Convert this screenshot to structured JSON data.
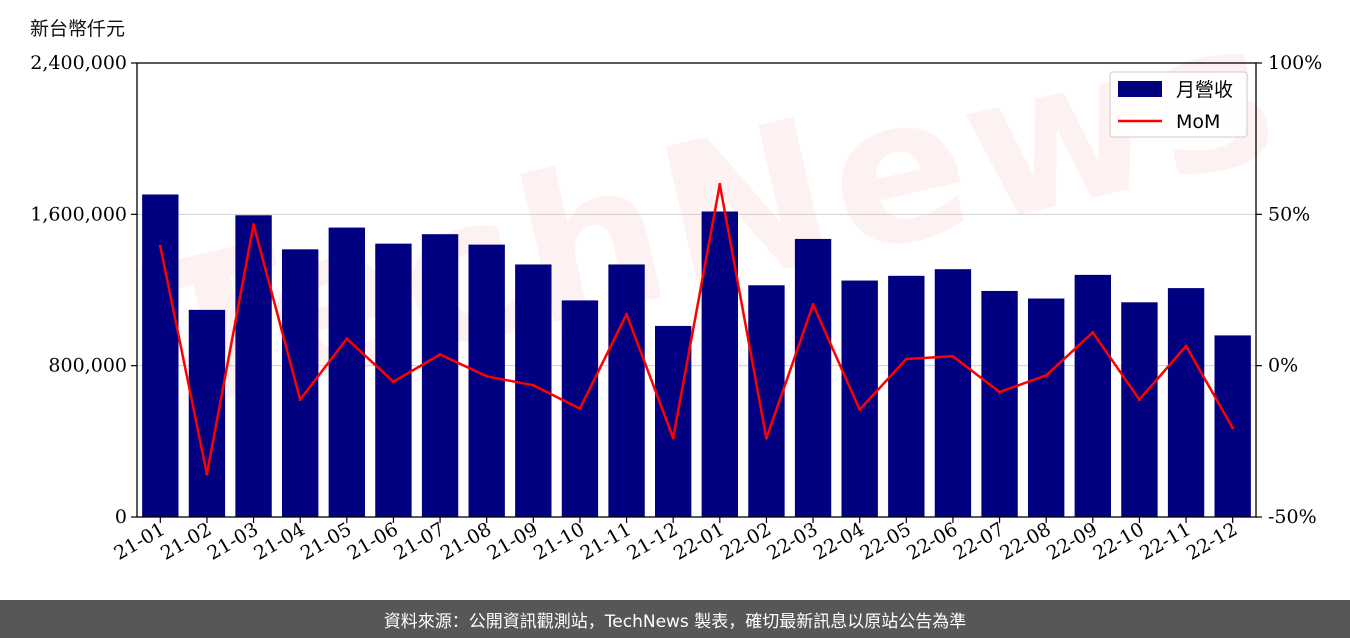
{
  "unit_label": "新台幣仟元",
  "footer_text": "資料來源：公開資訊觀測站，TechNews 製表，確切最新訊息以原站公告為準",
  "watermark_text": "TechNews",
  "chart_data": {
    "type": "bar",
    "categories": [
      "21-01",
      "21-02",
      "21-03",
      "21-04",
      "21-05",
      "21-06",
      "21-07",
      "21-08",
      "21-09",
      "21-10",
      "21-11",
      "21-12",
      "22-01",
      "22-02",
      "22-03",
      "22-04",
      "22-05",
      "22-06",
      "22-07",
      "22-08",
      "22-09",
      "22-10",
      "22-11",
      "22-12"
    ],
    "series": [
      {
        "name": "月營收",
        "type": "bar",
        "axis": "left",
        "color": "#000080",
        "values": [
          1705000,
          1095000,
          1595000,
          1415000,
          1530000,
          1445000,
          1495000,
          1440000,
          1335000,
          1145000,
          1335000,
          1010000,
          1615000,
          1225000,
          1470000,
          1250000,
          1275000,
          1310000,
          1195000,
          1155000,
          1280000,
          1135000,
          1210000,
          960000
        ]
      },
      {
        "name": "MoM",
        "type": "line",
        "axis": "right",
        "color": "#ff0000",
        "values": [
          39.5,
          -35.8,
          46.6,
          -11.2,
          8.9,
          -5.3,
          3.7,
          -3.5,
          -6.5,
          -14.2,
          17.0,
          -23.9,
          59.9,
          -24.0,
          20.2,
          -14.5,
          2.2,
          3.1,
          -8.7,
          -3.2,
          11.0,
          -11.2,
          6.5,
          -20.6
        ]
      }
    ],
    "ylim_left": [
      0,
      2400000
    ],
    "yticks_left": [
      0,
      800000,
      1600000,
      2400000
    ],
    "ytick_labels_left": [
      "0",
      "800,000",
      "1,600,000",
      "2,400,000"
    ],
    "ylim_right": [
      -50,
      100
    ],
    "yticks_right": [
      -50,
      0,
      50,
      100
    ],
    "ytick_labels_right": [
      "-50%",
      "0%",
      "50%",
      "100%"
    ],
    "grid": "horizontal",
    "legend": {
      "placement": "top-right",
      "entries": [
        {
          "label": "月營收",
          "color": "#000080",
          "kind": "bar"
        },
        {
          "label": "MoM",
          "color": "#ff0000",
          "kind": "line"
        }
      ]
    }
  }
}
